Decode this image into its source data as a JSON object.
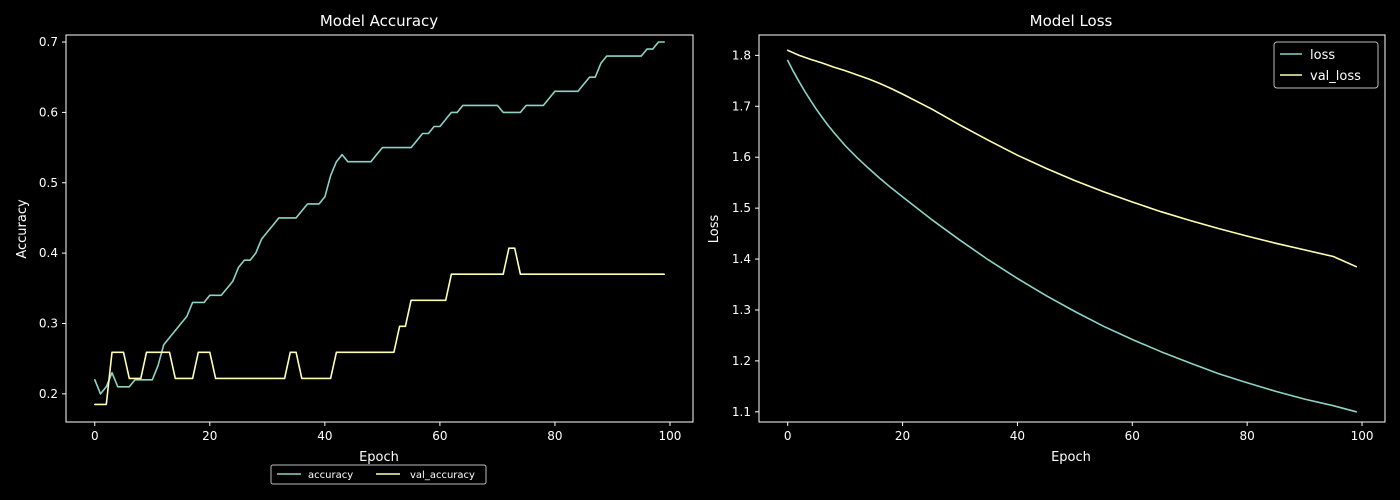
{
  "colors": {
    "background": "#000000",
    "text": "#ffffff",
    "series_teal": "#8dd3c7",
    "series_yellow": "#ffffb3",
    "legend_border": "#bbbbbb"
  },
  "chart_data": [
    {
      "type": "line",
      "title": "Model Accuracy",
      "xlabel": "Epoch",
      "ylabel": "Accuracy",
      "xlim": [
        -5,
        104
      ],
      "ylim": [
        0.16,
        0.71
      ],
      "xticks": [
        0,
        20,
        40,
        60,
        80,
        100
      ],
      "yticks": [
        0.2,
        0.3,
        0.4,
        0.5,
        0.6,
        0.7
      ],
      "xtick_labels": [
        "0",
        "20",
        "40",
        "60",
        "80",
        "100"
      ],
      "ytick_labels": [
        "0.2",
        "0.3",
        "0.4",
        "0.5",
        "0.6",
        "0.7"
      ],
      "grid": false,
      "legend_placement": "bottom-center-outside",
      "series": [
        {
          "name": "accuracy",
          "color": "#8dd3c7",
          "x": [
            0,
            1,
            2,
            3,
            4,
            5,
            6,
            7,
            8,
            9,
            10,
            11,
            12,
            13,
            14,
            15,
            16,
            17,
            18,
            19,
            20,
            21,
            22,
            23,
            24,
            25,
            26,
            27,
            28,
            29,
            30,
            31,
            32,
            33,
            34,
            35,
            36,
            37,
            38,
            39,
            40,
            41,
            42,
            43,
            44,
            45,
            46,
            47,
            48,
            49,
            50,
            51,
            52,
            53,
            54,
            55,
            56,
            57,
            58,
            59,
            60,
            61,
            62,
            63,
            64,
            65,
            66,
            67,
            68,
            69,
            70,
            71,
            72,
            73,
            74,
            75,
            76,
            77,
            78,
            79,
            80,
            81,
            82,
            83,
            84,
            85,
            86,
            87,
            88,
            89,
            90,
            91,
            92,
            93,
            94,
            95,
            96,
            97,
            98,
            99
          ],
          "values": [
            0.22,
            0.2,
            0.21,
            0.23,
            0.21,
            0.21,
            0.21,
            0.22,
            0.22,
            0.22,
            0.22,
            0.24,
            0.27,
            0.28,
            0.29,
            0.3,
            0.31,
            0.33,
            0.33,
            0.33,
            0.34,
            0.34,
            0.34,
            0.35,
            0.36,
            0.38,
            0.39,
            0.39,
            0.4,
            0.42,
            0.43,
            0.44,
            0.45,
            0.45,
            0.45,
            0.45,
            0.46,
            0.47,
            0.47,
            0.47,
            0.48,
            0.51,
            0.53,
            0.54,
            0.53,
            0.53,
            0.53,
            0.53,
            0.53,
            0.54,
            0.55,
            0.55,
            0.55,
            0.55,
            0.55,
            0.55,
            0.56,
            0.57,
            0.57,
            0.58,
            0.58,
            0.59,
            0.6,
            0.6,
            0.61,
            0.61,
            0.61,
            0.61,
            0.61,
            0.61,
            0.61,
            0.6,
            0.6,
            0.6,
            0.6,
            0.61,
            0.61,
            0.61,
            0.61,
            0.62,
            0.63,
            0.63,
            0.63,
            0.63,
            0.63,
            0.64,
            0.65,
            0.65,
            0.67,
            0.68,
            0.68,
            0.68,
            0.68,
            0.68,
            0.68,
            0.68,
            0.69,
            0.69,
            0.7,
            0.7
          ]
        },
        {
          "name": "val_accuracy",
          "color": "#ffffb3",
          "x": [
            0,
            1,
            2,
            3,
            4,
            5,
            6,
            7,
            8,
            9,
            10,
            11,
            12,
            13,
            14,
            15,
            16,
            17,
            18,
            19,
            20,
            21,
            22,
            23,
            24,
            25,
            26,
            27,
            28,
            29,
            30,
            31,
            32,
            33,
            34,
            35,
            36,
            37,
            38,
            39,
            40,
            41,
            42,
            43,
            44,
            45,
            46,
            47,
            48,
            49,
            50,
            51,
            52,
            53,
            54,
            55,
            56,
            57,
            58,
            59,
            60,
            61,
            62,
            63,
            64,
            65,
            66,
            67,
            68,
            69,
            70,
            71,
            72,
            73,
            74,
            75,
            76,
            77,
            78,
            79,
            80,
            81,
            82,
            83,
            84,
            85,
            86,
            87,
            88,
            89,
            90,
            91,
            92,
            93,
            94,
            95,
            96,
            97,
            98,
            99
          ],
          "values": [
            0.185,
            0.185,
            0.185,
            0.259,
            0.259,
            0.259,
            0.222,
            0.222,
            0.222,
            0.259,
            0.259,
            0.259,
            0.259,
            0.259,
            0.222,
            0.222,
            0.222,
            0.222,
            0.259,
            0.259,
            0.259,
            0.222,
            0.222,
            0.222,
            0.222,
            0.222,
            0.222,
            0.222,
            0.222,
            0.222,
            0.222,
            0.222,
            0.222,
            0.222,
            0.259,
            0.259,
            0.222,
            0.222,
            0.222,
            0.222,
            0.222,
            0.222,
            0.259,
            0.259,
            0.259,
            0.259,
            0.259,
            0.259,
            0.259,
            0.259,
            0.259,
            0.259,
            0.259,
            0.296,
            0.296,
            0.333,
            0.333,
            0.333,
            0.333,
            0.333,
            0.333,
            0.333,
            0.37,
            0.37,
            0.37,
            0.37,
            0.37,
            0.37,
            0.37,
            0.37,
            0.37,
            0.37,
            0.407,
            0.407,
            0.37,
            0.37,
            0.37,
            0.37,
            0.37,
            0.37,
            0.37,
            0.37,
            0.37,
            0.37,
            0.37,
            0.37,
            0.37,
            0.37,
            0.37,
            0.37,
            0.37,
            0.37,
            0.37,
            0.37,
            0.37,
            0.37,
            0.37,
            0.37,
            0.37,
            0.37
          ]
        }
      ]
    },
    {
      "type": "line",
      "title": "Model Loss",
      "xlabel": "Epoch",
      "ylabel": "Loss",
      "xlim": [
        -5,
        104
      ],
      "ylim": [
        1.08,
        1.84
      ],
      "xticks": [
        0,
        20,
        40,
        60,
        80,
        100
      ],
      "yticks": [
        1.1,
        1.2,
        1.3,
        1.4,
        1.5,
        1.6,
        1.7,
        1.8
      ],
      "xtick_labels": [
        "0",
        "20",
        "40",
        "60",
        "80",
        "100"
      ],
      "ytick_labels": [
        "1.1",
        "1.2",
        "1.3",
        "1.4",
        "1.5",
        "1.6",
        "1.7",
        "1.8"
      ],
      "grid": false,
      "legend_placement": "top-right",
      "series": [
        {
          "name": "loss",
          "color": "#8dd3c7",
          "x": [
            0,
            1,
            2,
            3,
            4,
            5,
            6,
            7,
            8,
            9,
            10,
            12,
            14,
            16,
            18,
            20,
            25,
            30,
            35,
            40,
            45,
            50,
            55,
            60,
            65,
            70,
            75,
            80,
            85,
            90,
            95,
            99
          ],
          "values": [
            1.79,
            1.768,
            1.748,
            1.729,
            1.711,
            1.694,
            1.678,
            1.663,
            1.649,
            1.636,
            1.623,
            1.6,
            1.579,
            1.559,
            1.54,
            1.522,
            1.478,
            1.437,
            1.398,
            1.362,
            1.328,
            1.297,
            1.268,
            1.242,
            1.218,
            1.196,
            1.175,
            1.157,
            1.14,
            1.125,
            1.112,
            1.1
          ]
        },
        {
          "name": "val_loss",
          "color": "#ffffb3",
          "x": [
            0,
            2,
            4,
            6,
            8,
            10,
            12,
            14,
            16,
            18,
            20,
            25,
            30,
            35,
            40,
            45,
            50,
            55,
            60,
            65,
            70,
            75,
            80,
            85,
            90,
            95,
            99
          ],
          "values": [
            1.81,
            1.8,
            1.792,
            1.785,
            1.777,
            1.77,
            1.762,
            1.754,
            1.745,
            1.735,
            1.724,
            1.695,
            1.663,
            1.633,
            1.604,
            1.578,
            1.554,
            1.532,
            1.512,
            1.493,
            1.476,
            1.46,
            1.445,
            1.431,
            1.418,
            1.405,
            1.385
          ]
        }
      ]
    }
  ]
}
